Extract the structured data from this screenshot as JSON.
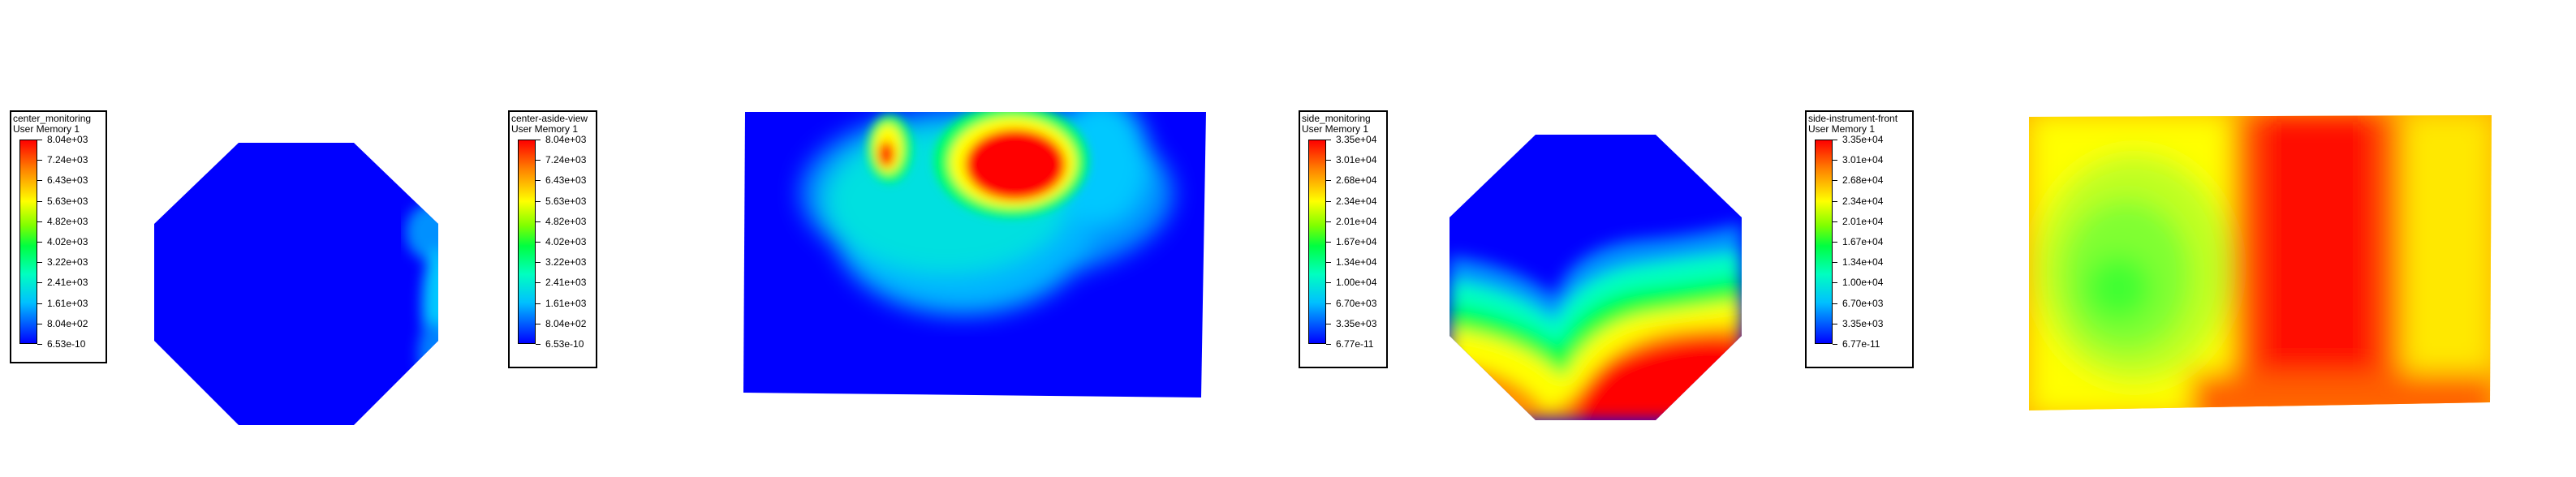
{
  "legends": [
    {
      "title": "center_monitoring",
      "subtitle": "User Memory 1",
      "labels": [
        "8.04e+03",
        "7.24e+03",
        "6.43e+03",
        "5.63e+03",
        "4.82e+03",
        "4.02e+03",
        "3.22e+03",
        "2.41e+03",
        "1.61e+03",
        "8.04e+02",
        "6.53e-10"
      ]
    },
    {
      "title": "center-aside-view",
      "subtitle": "User Memory 1",
      "labels": [
        "8.04e+03",
        "7.24e+03",
        "6.43e+03",
        "5.63e+03",
        "4.82e+03",
        "4.02e+03",
        "3.22e+03",
        "2.41e+03",
        "1.61e+03",
        "8.04e+02",
        "6.53e-10"
      ]
    },
    {
      "title": "side_monitoring",
      "subtitle": "User Memory 1",
      "labels": [
        "3.35e+04",
        "3.01e+04",
        "2.68e+04",
        "2.34e+04",
        "2.01e+04",
        "1.67e+04",
        "1.34e+04",
        "1.00e+04",
        "6.70e+03",
        "3.35e+03",
        "6.77e-11"
      ]
    },
    {
      "title": "side-instrument-front",
      "subtitle": "User Memory 1",
      "labels": [
        "3.35e+04",
        "3.01e+04",
        "2.68e+04",
        "2.34e+04",
        "2.01e+04",
        "1.67e+04",
        "1.34e+04",
        "1.00e+04",
        "6.70e+03",
        "3.35e+03",
        "6.77e-11"
      ]
    }
  ],
  "colors": {
    "min": "#0000ff",
    "low": "#00c0ff",
    "mid_low": "#00ffc0",
    "mid": "#00ff40",
    "mid_high": "#ffff00",
    "high": "#ff8000",
    "max": "#ff0000"
  }
}
